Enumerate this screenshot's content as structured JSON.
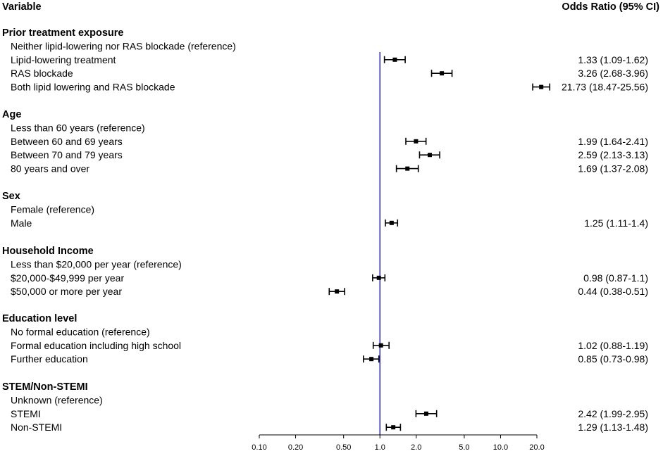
{
  "chart_data": {
    "type": "forest",
    "x_scale": "log",
    "reference_line": 1.0,
    "reference_line_color": "#1a1ab5",
    "xlim": [
      0.1,
      20.0
    ],
    "ticks": [
      {
        "value": 0.1,
        "label": "0.10"
      },
      {
        "value": 0.2,
        "label": "0.20"
      },
      {
        "value": 0.5,
        "label": "0.50"
      },
      {
        "value": 1.0,
        "label": "1.0"
      },
      {
        "value": 2.0,
        "label": "2.0"
      },
      {
        "value": 5.0,
        "label": "5.0"
      },
      {
        "value": 10.0,
        "label": "10.0"
      },
      {
        "value": 20.0,
        "label": "20.0"
      }
    ],
    "header_left": "Variable",
    "header_right": "Odds Ratio (95% CI)",
    "sections": [
      {
        "title": "Prior treatment exposure",
        "rows": [
          {
            "label": "Neither lipid-lowering nor RAS blockade (reference)"
          },
          {
            "label": "Lipid-lowering treatment",
            "or": 1.33,
            "lo": 1.09,
            "hi": 1.62,
            "text": "1.33 (1.09-1.62)"
          },
          {
            "label": "RAS blockade",
            "or": 3.26,
            "lo": 2.68,
            "hi": 3.96,
            "text": "3.26 (2.68-3.96)"
          },
          {
            "label": "Both lipid lowering and RAS blockade",
            "or": 21.73,
            "lo": 18.47,
            "hi": 25.56,
            "text": "21.73 (18.47-25.56)"
          }
        ]
      },
      {
        "title": "Age",
        "rows": [
          {
            "label": "Less than 60 years (reference)"
          },
          {
            "label": "Between 60 and 69 years",
            "or": 1.99,
            "lo": 1.64,
            "hi": 2.41,
            "text": "1.99 (1.64-2.41)"
          },
          {
            "label": "Between 70 and 79 years",
            "or": 2.59,
            "lo": 2.13,
            "hi": 3.13,
            "text": "2.59 (2.13-3.13)"
          },
          {
            "label": "80 years and over",
            "or": 1.69,
            "lo": 1.37,
            "hi": 2.08,
            "text": "1.69 (1.37-2.08)"
          }
        ]
      },
      {
        "title": "Sex",
        "rows": [
          {
            "label": "Female (reference)"
          },
          {
            "label": "Male",
            "or": 1.25,
            "lo": 1.11,
            "hi": 1.4,
            "text": "1.25 (1.11-1.4)"
          }
        ]
      },
      {
        "title": "Household Income",
        "rows": [
          {
            "label": "Less than $20,000 per year (reference)"
          },
          {
            "label": "$20,000-$49,999 per year",
            "or": 0.98,
            "lo": 0.87,
            "hi": 1.1,
            "text": "0.98 (0.87-1.1)"
          },
          {
            "label": "$50,000 or more per year",
            "or": 0.44,
            "lo": 0.38,
            "hi": 0.51,
            "text": "0.44 (0.38-0.51)"
          }
        ]
      },
      {
        "title": "Education level",
        "rows": [
          {
            "label": "No formal education (reference)"
          },
          {
            "label": "Formal education including high school",
            "or": 1.02,
            "lo": 0.88,
            "hi": 1.19,
            "text": "1.02 (0.88-1.19)"
          },
          {
            "label": "Further education",
            "or": 0.85,
            "lo": 0.73,
            "hi": 0.98,
            "text": "0.85 (0.73-0.98)"
          }
        ]
      },
      {
        "title": "STEM/Non-STEMI",
        "rows": [
          {
            "label": "Unknown (reference)"
          },
          {
            "label": "STEMI",
            "or": 2.42,
            "lo": 1.99,
            "hi": 2.95,
            "text": "2.42 (1.99-2.95)"
          },
          {
            "label": "Non-STEMI",
            "or": 1.29,
            "lo": 1.13,
            "hi": 1.48,
            "text": "1.29 (1.13-1.48)"
          }
        ]
      }
    ]
  }
}
